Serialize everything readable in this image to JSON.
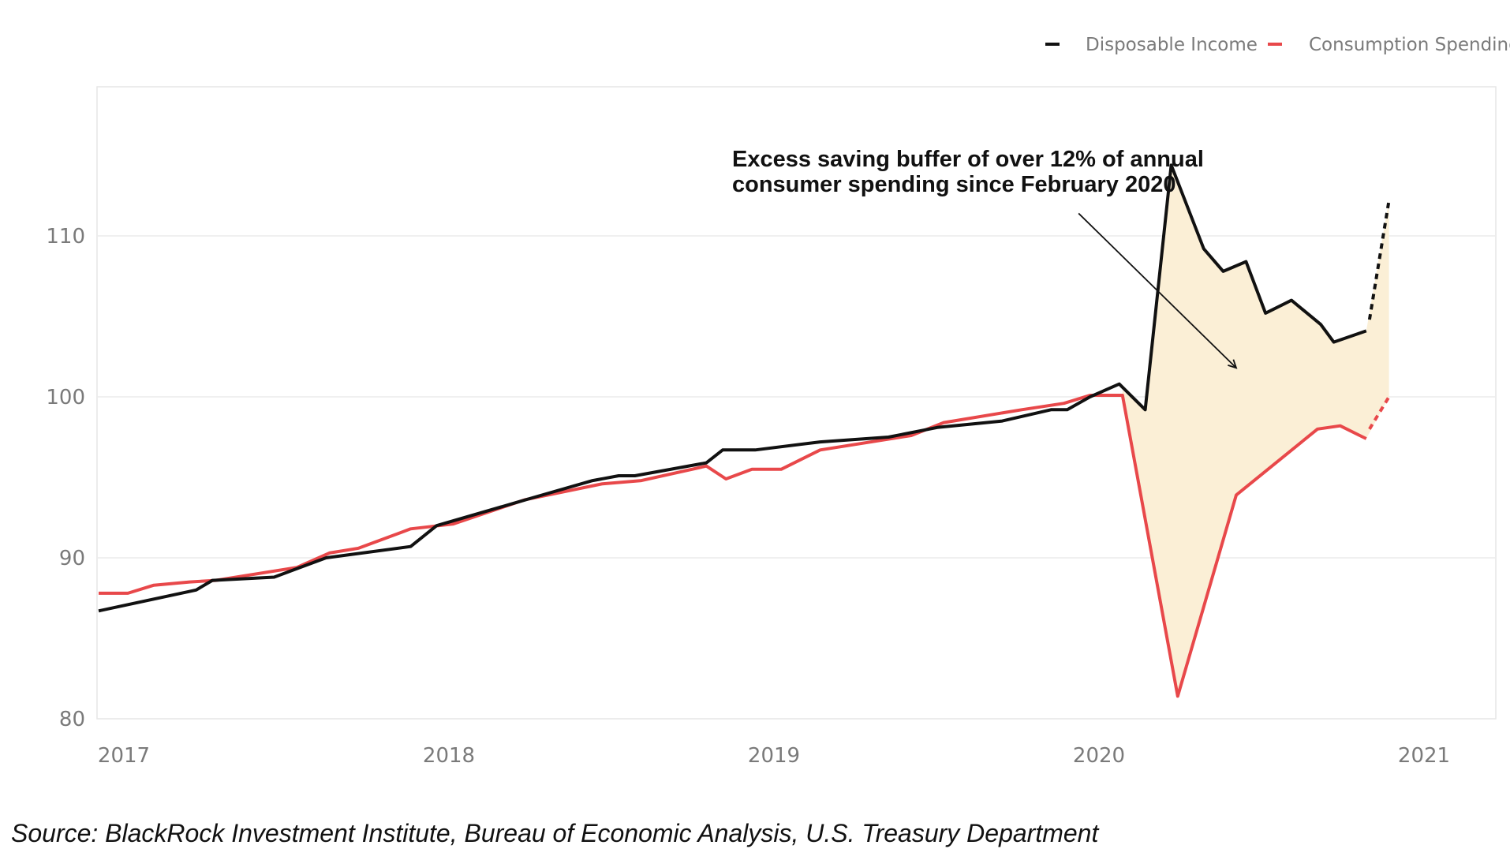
{
  "chart_data": {
    "type": "line",
    "title": "",
    "xlabel": "",
    "ylabel": "",
    "ylim": [
      80,
      120
    ],
    "yticks": [
      80,
      90,
      100,
      110
    ],
    "xlim": [
      2017.0,
      2021.22
    ],
    "xticks": [
      {
        "value": 2017,
        "label": "2017"
      },
      {
        "value": 2018,
        "label": "2018"
      },
      {
        "value": 2019,
        "label": "2019"
      },
      {
        "value": 2020,
        "label": "2020"
      },
      {
        "value": 2021,
        "label": "2021"
      }
    ],
    "grid": true,
    "legend": {
      "position": "top-right"
    },
    "series": [
      {
        "name": "Disposable Income",
        "color": "#111111",
        "style": "solid",
        "points": [
          [
            2017.0,
            86.7
          ],
          [
            2017.3,
            88.0
          ],
          [
            2017.35,
            88.6
          ],
          [
            2017.54,
            88.8
          ],
          [
            2017.7,
            90.0
          ],
          [
            2017.96,
            90.7
          ],
          [
            2018.04,
            92.0
          ],
          [
            2018.33,
            93.7
          ],
          [
            2018.52,
            94.8
          ],
          [
            2018.6,
            95.1
          ],
          [
            2018.65,
            95.1
          ],
          [
            2018.87,
            95.9
          ],
          [
            2018.92,
            96.7
          ],
          [
            2019.02,
            96.7
          ],
          [
            2019.22,
            97.2
          ],
          [
            2019.43,
            97.5
          ],
          [
            2019.58,
            98.1
          ],
          [
            2019.78,
            98.5
          ],
          [
            2019.93,
            99.2
          ],
          [
            2019.98,
            99.2
          ],
          [
            2020.05,
            100.0
          ],
          [
            2020.14,
            100.8
          ],
          [
            2020.22,
            99.2
          ],
          [
            2020.3,
            114.4
          ],
          [
            2020.4,
            109.2
          ],
          [
            2020.46,
            107.8
          ],
          [
            2020.53,
            108.4
          ],
          [
            2020.59,
            105.2
          ],
          [
            2020.67,
            106.0
          ],
          [
            2020.76,
            104.5
          ],
          [
            2020.8,
            103.4
          ],
          [
            2020.9,
            104.1
          ]
        ]
      },
      {
        "name": "Disposable Income (projected)",
        "color": "#111111",
        "style": "dashed",
        "points": [
          [
            2020.91,
            104.8
          ],
          [
            2020.97,
            112.2
          ]
        ]
      },
      {
        "name": "Consumption Spending",
        "color": "#e8484a",
        "style": "solid",
        "points": [
          [
            2017.0,
            87.8
          ],
          [
            2017.09,
            87.8
          ],
          [
            2017.17,
            88.3
          ],
          [
            2017.28,
            88.5
          ],
          [
            2017.36,
            88.6
          ],
          [
            2017.61,
            89.4
          ],
          [
            2017.71,
            90.3
          ],
          [
            2017.8,
            90.6
          ],
          [
            2017.96,
            91.8
          ],
          [
            2018.09,
            92.1
          ],
          [
            2018.31,
            93.6
          ],
          [
            2018.55,
            94.6
          ],
          [
            2018.67,
            94.8
          ],
          [
            2018.87,
            95.7
          ],
          [
            2018.93,
            94.9
          ],
          [
            2019.01,
            95.5
          ],
          [
            2019.1,
            95.5
          ],
          [
            2019.22,
            96.7
          ],
          [
            2019.5,
            97.6
          ],
          [
            2019.6,
            98.4
          ],
          [
            2019.84,
            99.2
          ],
          [
            2019.97,
            99.6
          ],
          [
            2020.05,
            100.1
          ],
          [
            2020.15,
            100.1
          ],
          [
            2020.32,
            81.4
          ],
          [
            2020.5,
            93.9
          ],
          [
            2020.75,
            98.0
          ],
          [
            2020.82,
            98.2
          ],
          [
            2020.88,
            97.6
          ],
          [
            2020.9,
            97.4
          ]
        ]
      },
      {
        "name": "Consumption Spending (projected)",
        "color": "#e8484a",
        "style": "dashed",
        "points": [
          [
            2020.91,
            98.0
          ],
          [
            2020.97,
            100.0
          ]
        ]
      }
    ],
    "shaded_region": {
      "between": [
        "Disposable Income",
        "Consumption Spending"
      ],
      "from_x": 2020.15,
      "to_x": 2020.97,
      "color": "#fbefd6"
    },
    "annotation": {
      "lines": [
        "Excess saving buffer of over 12% of annual",
        "consumer spending since February 2020"
      ],
      "arrow_from": [
        2020.015,
        111.4
      ],
      "arrow_to": [
        2020.5,
        101.8
      ]
    }
  },
  "legend_items": [
    {
      "label": "Disposable Income",
      "color": "#111111"
    },
    {
      "label": "Consumption Spending",
      "color": "#e8484a"
    }
  ],
  "source": "Source: BlackRock Investment Institute, Bureau of Economic Analysis, U.S. Treasury Department"
}
